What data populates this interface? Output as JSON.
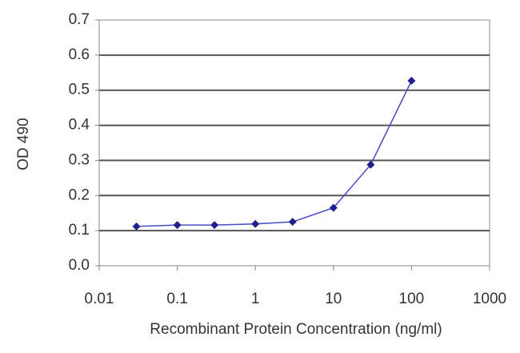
{
  "chart_data": {
    "type": "line",
    "x_label": "Recombinant Protein Concentration (ng/ml)",
    "y_label": "OD 490",
    "x": [
      0.03,
      0.1,
      0.3,
      1,
      3,
      10,
      30,
      100
    ],
    "series": [
      {
        "color": "#1f1f8f",
        "values": [
          0.112,
          0.116,
          0.116,
          0.119,
          0.125,
          0.165,
          0.288,
          0.527
        ]
      }
    ],
    "x_log": true,
    "xlim": [
      0.01,
      1000
    ],
    "xticks": [
      0.01,
      0.1,
      1,
      10,
      100,
      1000
    ],
    "ylim": [
      0,
      0.7
    ],
    "yticks": [
      {
        "value": 0,
        "label": "0.0"
      },
      0.1,
      0.2,
      0.3,
      0.4,
      0.5,
      0.6,
      0.7
    ],
    "grid": true
  }
}
